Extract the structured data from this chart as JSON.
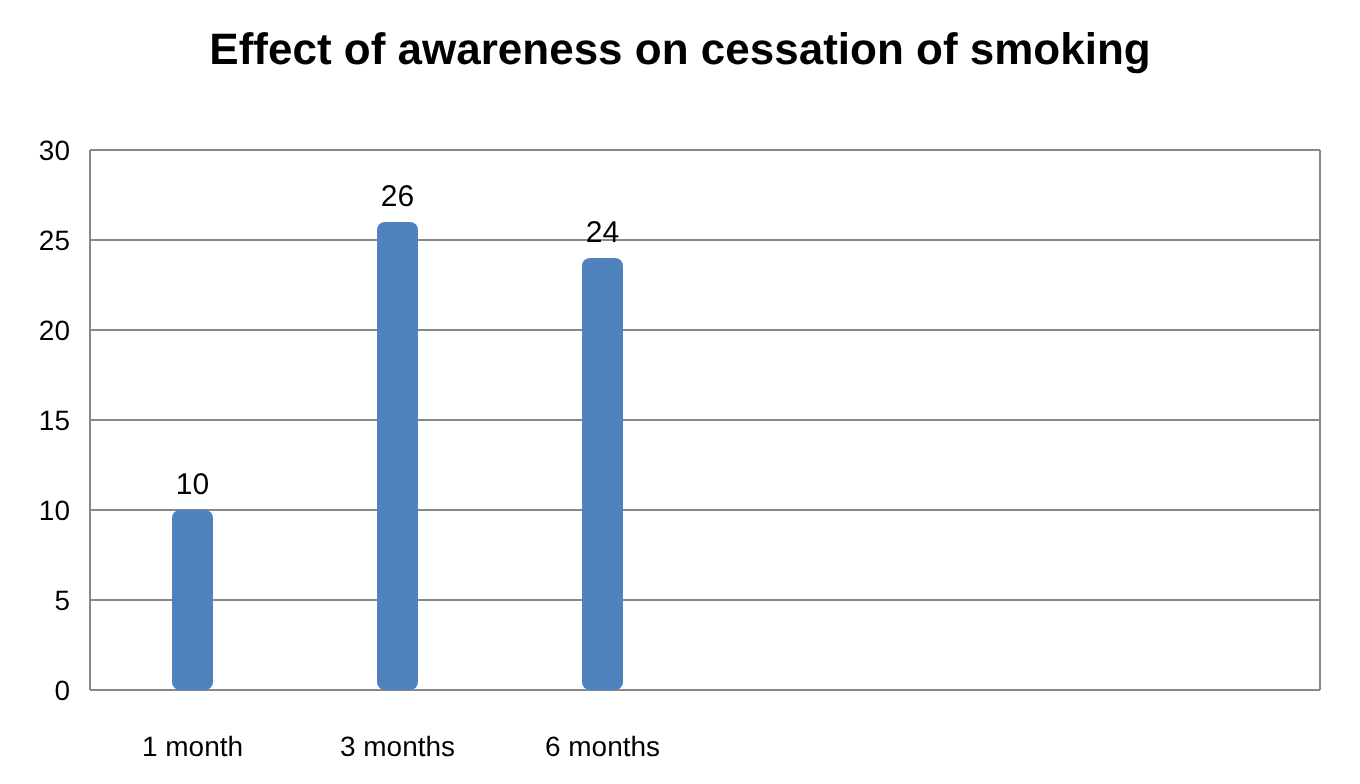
{
  "chart_data": {
    "type": "bar",
    "title": "Effect of awareness on cessation of smoking",
    "categories": [
      "1 month",
      "3 months",
      "6 months",
      null,
      null,
      null
    ],
    "values": [
      10,
      26,
      24,
      null,
      null,
      null
    ],
    "color": "#4f81bd",
    "ylim": [
      0,
      30
    ],
    "yticks": [
      0,
      5,
      10,
      15,
      20,
      25,
      30
    ],
    "grid": "y",
    "data_labels": true
  }
}
